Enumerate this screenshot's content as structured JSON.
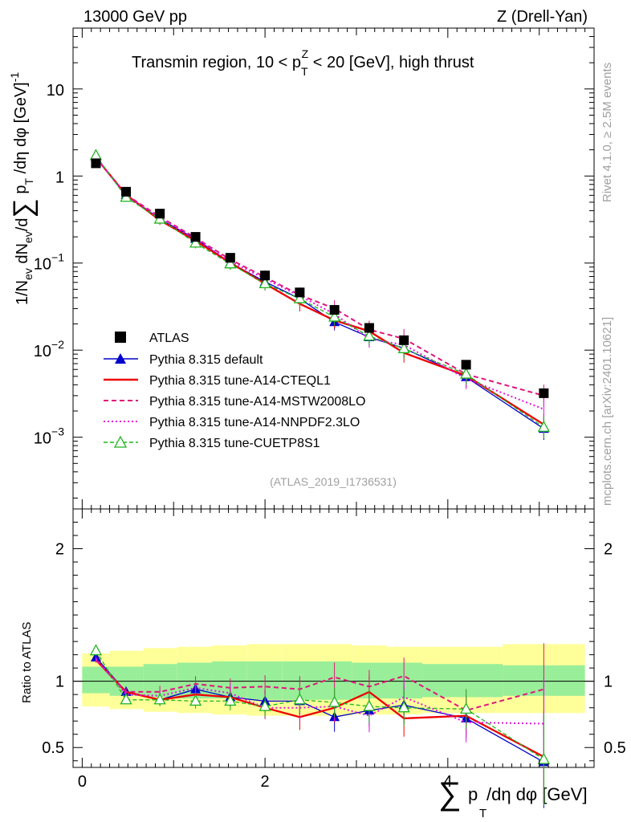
{
  "header": {
    "left": "13000 GeV pp",
    "right": "Z (Drell-Yan)"
  },
  "plot_title": "Transmin region, 10 < p_T^Z < 20 [GeV], high thrust",
  "side_labels": {
    "rivet": "Rivet 4.1.0, ≥ 2.5M events",
    "source": "mcplots.cern.ch [arXiv:2401.10621]"
  },
  "analysis_id": "(ATLAS_2019_I1736531)",
  "colors": {
    "data": "#000000",
    "default": "#0000cc",
    "cteql1": "#ee0000",
    "mstw": "#e0167a",
    "nnpdf": "#e015e0",
    "cuetp8s1": "#1fb51f",
    "band_green": "#99ee99",
    "band_yellow": "#ffff99"
  },
  "chart_data": [
    {
      "type": "line",
      "title": "Transmin region, 10 < p_T^Z < 20 [GeV], high thrust",
      "xlabel": "Σ p_T/dη dφ [GeV]",
      "ylabel": "1/N_ev dN_ev/dΣ p_T/dη dφ [GeV]^-1",
      "yscale": "log",
      "xlim": [
        -0.1,
        5.6
      ],
      "ylim": [
        0.00015,
        50
      ],
      "x": [
        0.15,
        0.48,
        0.85,
        1.24,
        1.62,
        2.0,
        2.38,
        2.76,
        3.14,
        3.52,
        4.2,
        5.05
      ],
      "yticks": [
        {
          "v": 0.001,
          "base": "10",
          "exp": "−3"
        },
        {
          "v": 0.01,
          "base": "10",
          "exp": "−2"
        },
        {
          "v": 0.1,
          "base": "10",
          "exp": "−1"
        },
        {
          "v": 1,
          "base": "1",
          "exp": ""
        },
        {
          "v": 10,
          "base": "10",
          "exp": ""
        }
      ],
      "series": [
        {
          "key": "data",
          "name": "ATLAS",
          "values": [
            1.4,
            0.66,
            0.37,
            0.2,
            0.115,
            0.072,
            0.046,
            0.029,
            0.018,
            0.013,
            0.0068,
            0.0032
          ]
        },
        {
          "key": "default",
          "name": "Pythia 8.315 default",
          "values": [
            1.65,
            0.61,
            0.32,
            0.19,
            0.101,
            0.061,
            0.039,
            0.021,
            0.0141,
            0.0105,
            0.0049,
            0.00125
          ]
        },
        {
          "key": "cteql1",
          "name": "Pythia 8.315 tune-A14-CTEQL1",
          "values": [
            1.62,
            0.61,
            0.31,
            0.18,
            0.101,
            0.058,
            0.034,
            0.022,
            0.0165,
            0.0093,
            0.0051,
            0.0014
          ]
        },
        {
          "key": "mstw",
          "name": "Pythia 8.315 tune-A14-MSTW2008LO",
          "values": [
            1.62,
            0.61,
            0.34,
            0.195,
            0.11,
            0.069,
            0.043,
            0.03,
            0.0172,
            0.0135,
            0.0053,
            0.003
          ]
        },
        {
          "key": "nnpdf",
          "name": "Pythia 8.315 tune-A14-NNPDF2.3LO",
          "values": [
            1.64,
            0.59,
            0.33,
            0.19,
            0.105,
            0.066,
            0.042,
            0.026,
            0.0135,
            0.0115,
            0.0047,
            0.0021
          ]
        },
        {
          "key": "cuetp8s1",
          "name": "Pythia 8.315 tune-CUETP8S1",
          "values": [
            1.72,
            0.57,
            0.32,
            0.17,
            0.098,
            0.058,
            0.039,
            0.024,
            0.0145,
            0.0104,
            0.0053,
            0.0013
          ]
        }
      ]
    },
    {
      "type": "line",
      "title": "",
      "xlabel": "Σ p_T/dη dφ [GeV]",
      "ylabel": "Ratio to ATLAS",
      "xlim": [
        -0.1,
        5.6
      ],
      "ylim": [
        0.35,
        2.3
      ],
      "xticks": [
        0,
        2,
        4
      ],
      "yticks": [
        0.5,
        1,
        2
      ],
      "x": [
        0.15,
        0.48,
        0.85,
        1.24,
        1.62,
        2.0,
        2.38,
        2.76,
        3.14,
        3.52,
        4.2,
        5.05
      ],
      "bins": [
        [
          0,
          0.3
        ],
        [
          0.3,
          0.67
        ],
        [
          0.67,
          1.04
        ],
        [
          1.04,
          1.42
        ],
        [
          1.42,
          1.8
        ],
        [
          1.8,
          2.19
        ],
        [
          2.19,
          2.57
        ],
        [
          2.57,
          2.95
        ],
        [
          2.95,
          3.33
        ],
        [
          3.33,
          3.72
        ],
        [
          3.72,
          4.6
        ],
        [
          4.6,
          5.5
        ]
      ],
      "band_green": [
        [
          0.91,
          1.11
        ],
        [
          0.89,
          1.11
        ],
        [
          0.88,
          1.13
        ],
        [
          0.87,
          1.14
        ],
        [
          0.87,
          1.15
        ],
        [
          0.86,
          1.15
        ],
        [
          0.86,
          1.15
        ],
        [
          0.86,
          1.15
        ],
        [
          0.87,
          1.14
        ],
        [
          0.87,
          1.14
        ],
        [
          0.88,
          1.13
        ],
        [
          0.89,
          1.12
        ]
      ],
      "band_yellow": [
        [
          0.81,
          1.21
        ],
        [
          0.79,
          1.23
        ],
        [
          0.77,
          1.25
        ],
        [
          0.76,
          1.26
        ],
        [
          0.75,
          1.27
        ],
        [
          0.74,
          1.28
        ],
        [
          0.74,
          1.28
        ],
        [
          0.74,
          1.28
        ],
        [
          0.75,
          1.27
        ],
        [
          0.75,
          1.26
        ],
        [
          0.76,
          1.26
        ],
        [
          0.76,
          1.28
        ]
      ],
      "series": [
        {
          "key": "default",
          "name": "Pythia 8.315 default",
          "values": [
            1.18,
            0.92,
            0.86,
            0.94,
            0.88,
            0.85,
            0.85,
            0.73,
            0.78,
            0.82,
            0.72,
            0.39
          ]
        },
        {
          "key": "cteql1",
          "name": "Pythia 8.315 tune-A14-CTEQL1",
          "values": [
            1.16,
            0.92,
            0.86,
            0.9,
            0.88,
            0.8,
            0.73,
            0.8,
            0.92,
            0.72,
            0.74,
            0.43
          ]
        },
        {
          "key": "mstw",
          "name": "Pythia 8.315 tune-A14-MSTW2008LO",
          "values": [
            1.16,
            0.92,
            0.92,
            0.98,
            0.95,
            0.96,
            0.94,
            1.03,
            0.96,
            1.04,
            0.78,
            0.94
          ]
        },
        {
          "key": "nnpdf",
          "name": "Pythia 8.315 tune-A14-NNPDF2.3LO",
          "values": [
            1.17,
            0.9,
            0.89,
            0.95,
            0.91,
            0.8,
            0.8,
            0.81,
            0.74,
            0.88,
            0.69,
            0.68
          ]
        },
        {
          "key": "cuetp8s1",
          "name": "Pythia 8.315 tune-CUETP8S1",
          "values": [
            1.23,
            0.86,
            0.86,
            0.85,
            0.85,
            0.81,
            0.86,
            0.84,
            0.81,
            0.8,
            0.79,
            0.41
          ]
        }
      ]
    }
  ]
}
